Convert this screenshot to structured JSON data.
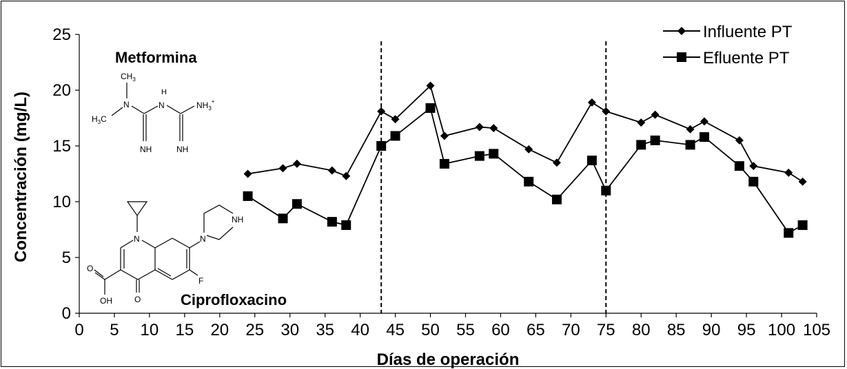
{
  "chart_data": {
    "type": "line",
    "title": "",
    "xlabel": "Días de operación",
    "ylabel": "Concentración (mg/L)",
    "xlim": [
      0,
      105
    ],
    "ylim": [
      0,
      25
    ],
    "xticks": [
      0,
      5,
      10,
      15,
      20,
      25,
      30,
      35,
      40,
      45,
      50,
      55,
      60,
      65,
      70,
      75,
      80,
      85,
      90,
      95,
      100,
      105
    ],
    "yticks": [
      0,
      5,
      10,
      15,
      20,
      25
    ],
    "legend_position": "top-right",
    "grid": false,
    "vertical_reference_lines": [
      43,
      75
    ],
    "series": [
      {
        "name": "Influente PT",
        "marker": "diamond",
        "color": "#000000",
        "x": [
          24,
          29,
          31,
          36,
          38,
          43,
          45,
          50,
          52,
          57,
          59,
          64,
          68,
          73,
          75,
          80,
          82,
          87,
          89,
          94,
          96,
          101,
          103
        ],
        "y": [
          12.5,
          13.0,
          13.4,
          12.8,
          12.3,
          18.1,
          17.4,
          20.4,
          15.9,
          16.7,
          16.6,
          14.7,
          13.5,
          18.9,
          18.1,
          17.1,
          17.8,
          16.5,
          17.2,
          15.5,
          13.2,
          12.6,
          11.8
        ]
      },
      {
        "name": "Efluente PT",
        "marker": "square",
        "color": "#000000",
        "x": [
          24,
          29,
          31,
          36,
          38,
          43,
          45,
          50,
          52,
          57,
          59,
          64,
          68,
          73,
          75,
          80,
          82,
          87,
          89,
          94,
          96,
          101,
          103
        ],
        "y": [
          10.5,
          8.5,
          9.8,
          8.2,
          7.9,
          15.0,
          15.9,
          18.4,
          13.4,
          14.1,
          14.3,
          11.8,
          10.2,
          13.7,
          11.0,
          15.1,
          15.5,
          15.1,
          15.8,
          13.2,
          11.8,
          7.2,
          7.9
        ]
      }
    ],
    "annotations": {
      "metformina": "Metformina",
      "ciprofloxacino": "Ciprofloxacino"
    }
  },
  "structures": {
    "metformina_atoms": {
      "ch3_top": "CH",
      "ch3_top_sub": "3",
      "n1": "N",
      "h_top": "H",
      "n2": "N",
      "nh3": "NH",
      "nh3_sub": "3",
      "nh3_sup": "+",
      "h3c": "H",
      "h3c_sub": "3",
      "h3c_c": "C",
      "nh_left": "NH",
      "nh_right": "NH"
    },
    "cipro_atoms": {
      "n_ring": "N",
      "n_pip": "N",
      "nh_pip": "NH",
      "o_keto": "O",
      "o_acid": "O",
      "oh": "OH",
      "f": "F"
    }
  }
}
